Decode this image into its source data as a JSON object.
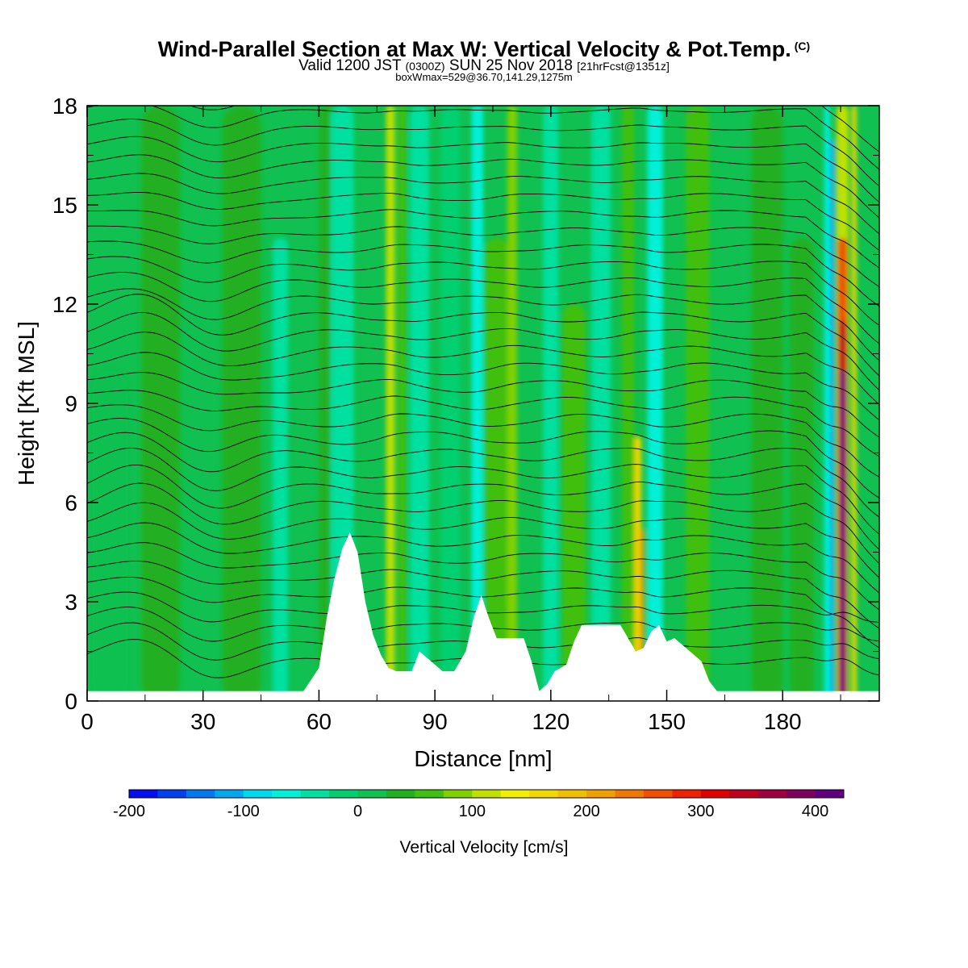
{
  "title": "Wind-Parallel Section at Max W: Vertical Velocity & Pot.Temp.",
  "title_mark": "(C)",
  "valid_line_a": "Valid 1200 JST",
  "valid_line_b": "(0300Z)",
  "valid_line_c": "SUN 25 Nov 2018",
  "valid_line_d": "[21hrFcst@1351z]",
  "box_line": "boxWmax=529@36.70,141.29,1275m",
  "chart_data": {
    "type": "heatmap",
    "xlabel": "Distance [nm]",
    "ylabel": "Height [Kft MSL]",
    "xlim": [
      0,
      205
    ],
    "ylim": [
      0,
      18
    ],
    "xticks": [
      0,
      30,
      60,
      90,
      120,
      150,
      180
    ],
    "yticks": [
      0,
      3,
      6,
      9,
      12,
      15,
      18
    ],
    "field": "Vertical Velocity",
    "overlay": "Potential temperature contours (black lines)",
    "colorbar": {
      "title": "Vertical Velocity [cm/s]",
      "labels": [
        -200,
        -100,
        0,
        100,
        200,
        300,
        400
      ],
      "min": -200,
      "step": 25,
      "colors": [
        "#0010f0",
        "#0040f0",
        "#0078f0",
        "#00a8f0",
        "#00d8f0",
        "#00f0d8",
        "#00e0a0",
        "#00d070",
        "#10c050",
        "#20b020",
        "#40c010",
        "#80d000",
        "#c0e000",
        "#f0f000",
        "#f0d800",
        "#f0c000",
        "#f0a000",
        "#f07800",
        "#f05000",
        "#f02000",
        "#e00000",
        "#c00020",
        "#a00040",
        "#800060",
        "#600080"
      ]
    },
    "terrain_profile": [
      [
        0,
        0.3
      ],
      [
        56,
        0.3
      ],
      [
        60,
        1.0
      ],
      [
        62,
        2.5
      ],
      [
        64,
        3.7
      ],
      [
        66,
        4.6
      ],
      [
        68,
        5.1
      ],
      [
        70,
        4.5
      ],
      [
        72,
        3.0
      ],
      [
        74,
        2.0
      ],
      [
        76,
        1.4
      ],
      [
        78,
        1.0
      ],
      [
        80,
        0.9
      ],
      [
        84,
        0.9
      ],
      [
        86,
        1.5
      ],
      [
        89,
        1.2
      ],
      [
        92,
        0.9
      ],
      [
        95,
        0.9
      ],
      [
        98,
        1.5
      ],
      [
        100,
        2.5
      ],
      [
        102,
        3.2
      ],
      [
        104,
        2.5
      ],
      [
        106,
        1.9
      ],
      [
        110,
        1.9
      ],
      [
        113,
        1.9
      ],
      [
        115,
        1.2
      ],
      [
        117,
        0.3
      ],
      [
        119,
        0.5
      ],
      [
        121,
        0.9
      ],
      [
        124,
        1.1
      ],
      [
        126,
        1.8
      ],
      [
        128,
        2.3
      ],
      [
        138,
        2.3
      ],
      [
        140,
        1.9
      ],
      [
        142,
        1.5
      ],
      [
        144,
        1.6
      ],
      [
        146,
        2.1
      ],
      [
        148,
        2.3
      ],
      [
        150,
        1.8
      ],
      [
        152,
        1.9
      ],
      [
        156,
        1.5
      ],
      [
        159,
        1.2
      ],
      [
        161,
        0.6
      ],
      [
        163,
        0.3
      ],
      [
        205,
        0.3
      ]
    ],
    "w_bands": [
      {
        "x": 6,
        "w": 9,
        "v": 20,
        "ytop": 10
      },
      {
        "x": 19,
        "w": 10,
        "v": 25,
        "ytop": 18
      },
      {
        "x": 40,
        "w": 10,
        "v": 30,
        "ytop": 18
      },
      {
        "x": 50,
        "w": 4,
        "v": -30,
        "ytop": 14
      },
      {
        "x": 62,
        "w": 4,
        "v": 30,
        "ytop": 18
      },
      {
        "x": 66,
        "w": 6,
        "v": -50,
        "ytop": 18
      },
      {
        "x": 78.5,
        "w": 2.2,
        "v": 120,
        "ytop": 18
      },
      {
        "x": 81.5,
        "w": 2,
        "v": 60,
        "ytop": 18
      },
      {
        "x": 86,
        "w": 5,
        "v": -40,
        "ytop": 18
      },
      {
        "x": 94,
        "w": 5,
        "v": -25,
        "ytop": 18
      },
      {
        "x": 101,
        "w": 3,
        "v": -70,
        "ytop": 18
      },
      {
        "x": 106,
        "w": 6,
        "v": 50,
        "ytop": 14
      },
      {
        "x": 110,
        "w": 2.5,
        "v": 80,
        "ytop": 18
      },
      {
        "x": 120,
        "w": 4,
        "v": -40,
        "ytop": 18
      },
      {
        "x": 126,
        "w": 6,
        "v": 50,
        "ytop": 12
      },
      {
        "x": 133,
        "w": 5,
        "v": -30,
        "ytop": 18
      },
      {
        "x": 142.5,
        "w": 1.8,
        "v": 150,
        "ytop": 8
      },
      {
        "x": 143.5,
        "w": 1.1,
        "v": 220,
        "ytop": 5.2
      },
      {
        "x": 140,
        "w": 3,
        "v": 60,
        "ytop": 18
      },
      {
        "x": 147,
        "w": 4,
        "v": -60,
        "ytop": 18
      },
      {
        "x": 158,
        "w": 6,
        "v": 50,
        "ytop": 18
      },
      {
        "x": 176,
        "w": 8,
        "v": 40,
        "ytop": 18
      },
      {
        "x": 185,
        "w": 6,
        "v": 40,
        "ytop": 14
      },
      {
        "x": 195.5,
        "w": 3.2,
        "v": 120,
        "ytop": 18
      },
      {
        "x": 195.5,
        "w": 2.4,
        "v": 250,
        "ytop": 14
      },
      {
        "x": 195.6,
        "w": 1.8,
        "v": 330,
        "ytop": 11.5
      },
      {
        "x": 195.6,
        "w": 1.3,
        "v": 420,
        "ytop": 10
      },
      {
        "x": 192.5,
        "w": 1.6,
        "v": -120,
        "ytop": 17
      },
      {
        "x": 191.5,
        "w": 1.5,
        "v": -60,
        "ytop": 18
      },
      {
        "x": 198.5,
        "w": 1.2,
        "v": 150,
        "ytop": 18
      }
    ],
    "theta_contour_count": 34
  }
}
